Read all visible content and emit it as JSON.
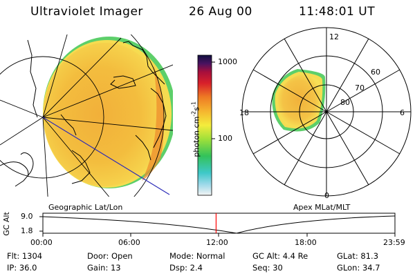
{
  "header": {
    "instrument": "Ultraviolet Imager",
    "date": "26 Aug 00",
    "time": "11:48:01 UT"
  },
  "colorbar": {
    "ticks": [
      "1000",
      "100"
    ],
    "unit_label": "photon cm-2s-1"
  },
  "polar_plot": {
    "mlt_labels": [
      "12",
      "18",
      "6",
      "0"
    ],
    "lat_labels": [
      "60",
      "70",
      "80"
    ]
  },
  "map_labels": {
    "left": "Geographic Lat/Lon",
    "right": "Apex MLat/MLT"
  },
  "alt_plot": {
    "axis_title": "GC Alt",
    "y_ticks": [
      "9.0",
      "1.8"
    ],
    "x_ticks": [
      "00:00",
      "06:00",
      "12:00",
      "18:00",
      "23:59"
    ],
    "current_time_fraction": 0.492
  },
  "footer": {
    "flt": "Flt:  1304",
    "ip": "IP:  36.0",
    "door": "Door:  Open",
    "gain": "Gain:  13",
    "mode": "Mode:  Normal",
    "dsp": "Dsp:      2.4",
    "gc_alt": "GC Alt:  4.4  Re",
    "seq": "Seq:  30",
    "glat": "GLat:    81.3",
    "glon": "GLon:    34.7"
  },
  "colors": {
    "aurora_main": "#f2b436",
    "aurora_light": "#f6d94e",
    "aurora_rim": "#5fd06a",
    "aurora_hot": "#ee8a2c",
    "time_marker": "#ff0000"
  }
}
